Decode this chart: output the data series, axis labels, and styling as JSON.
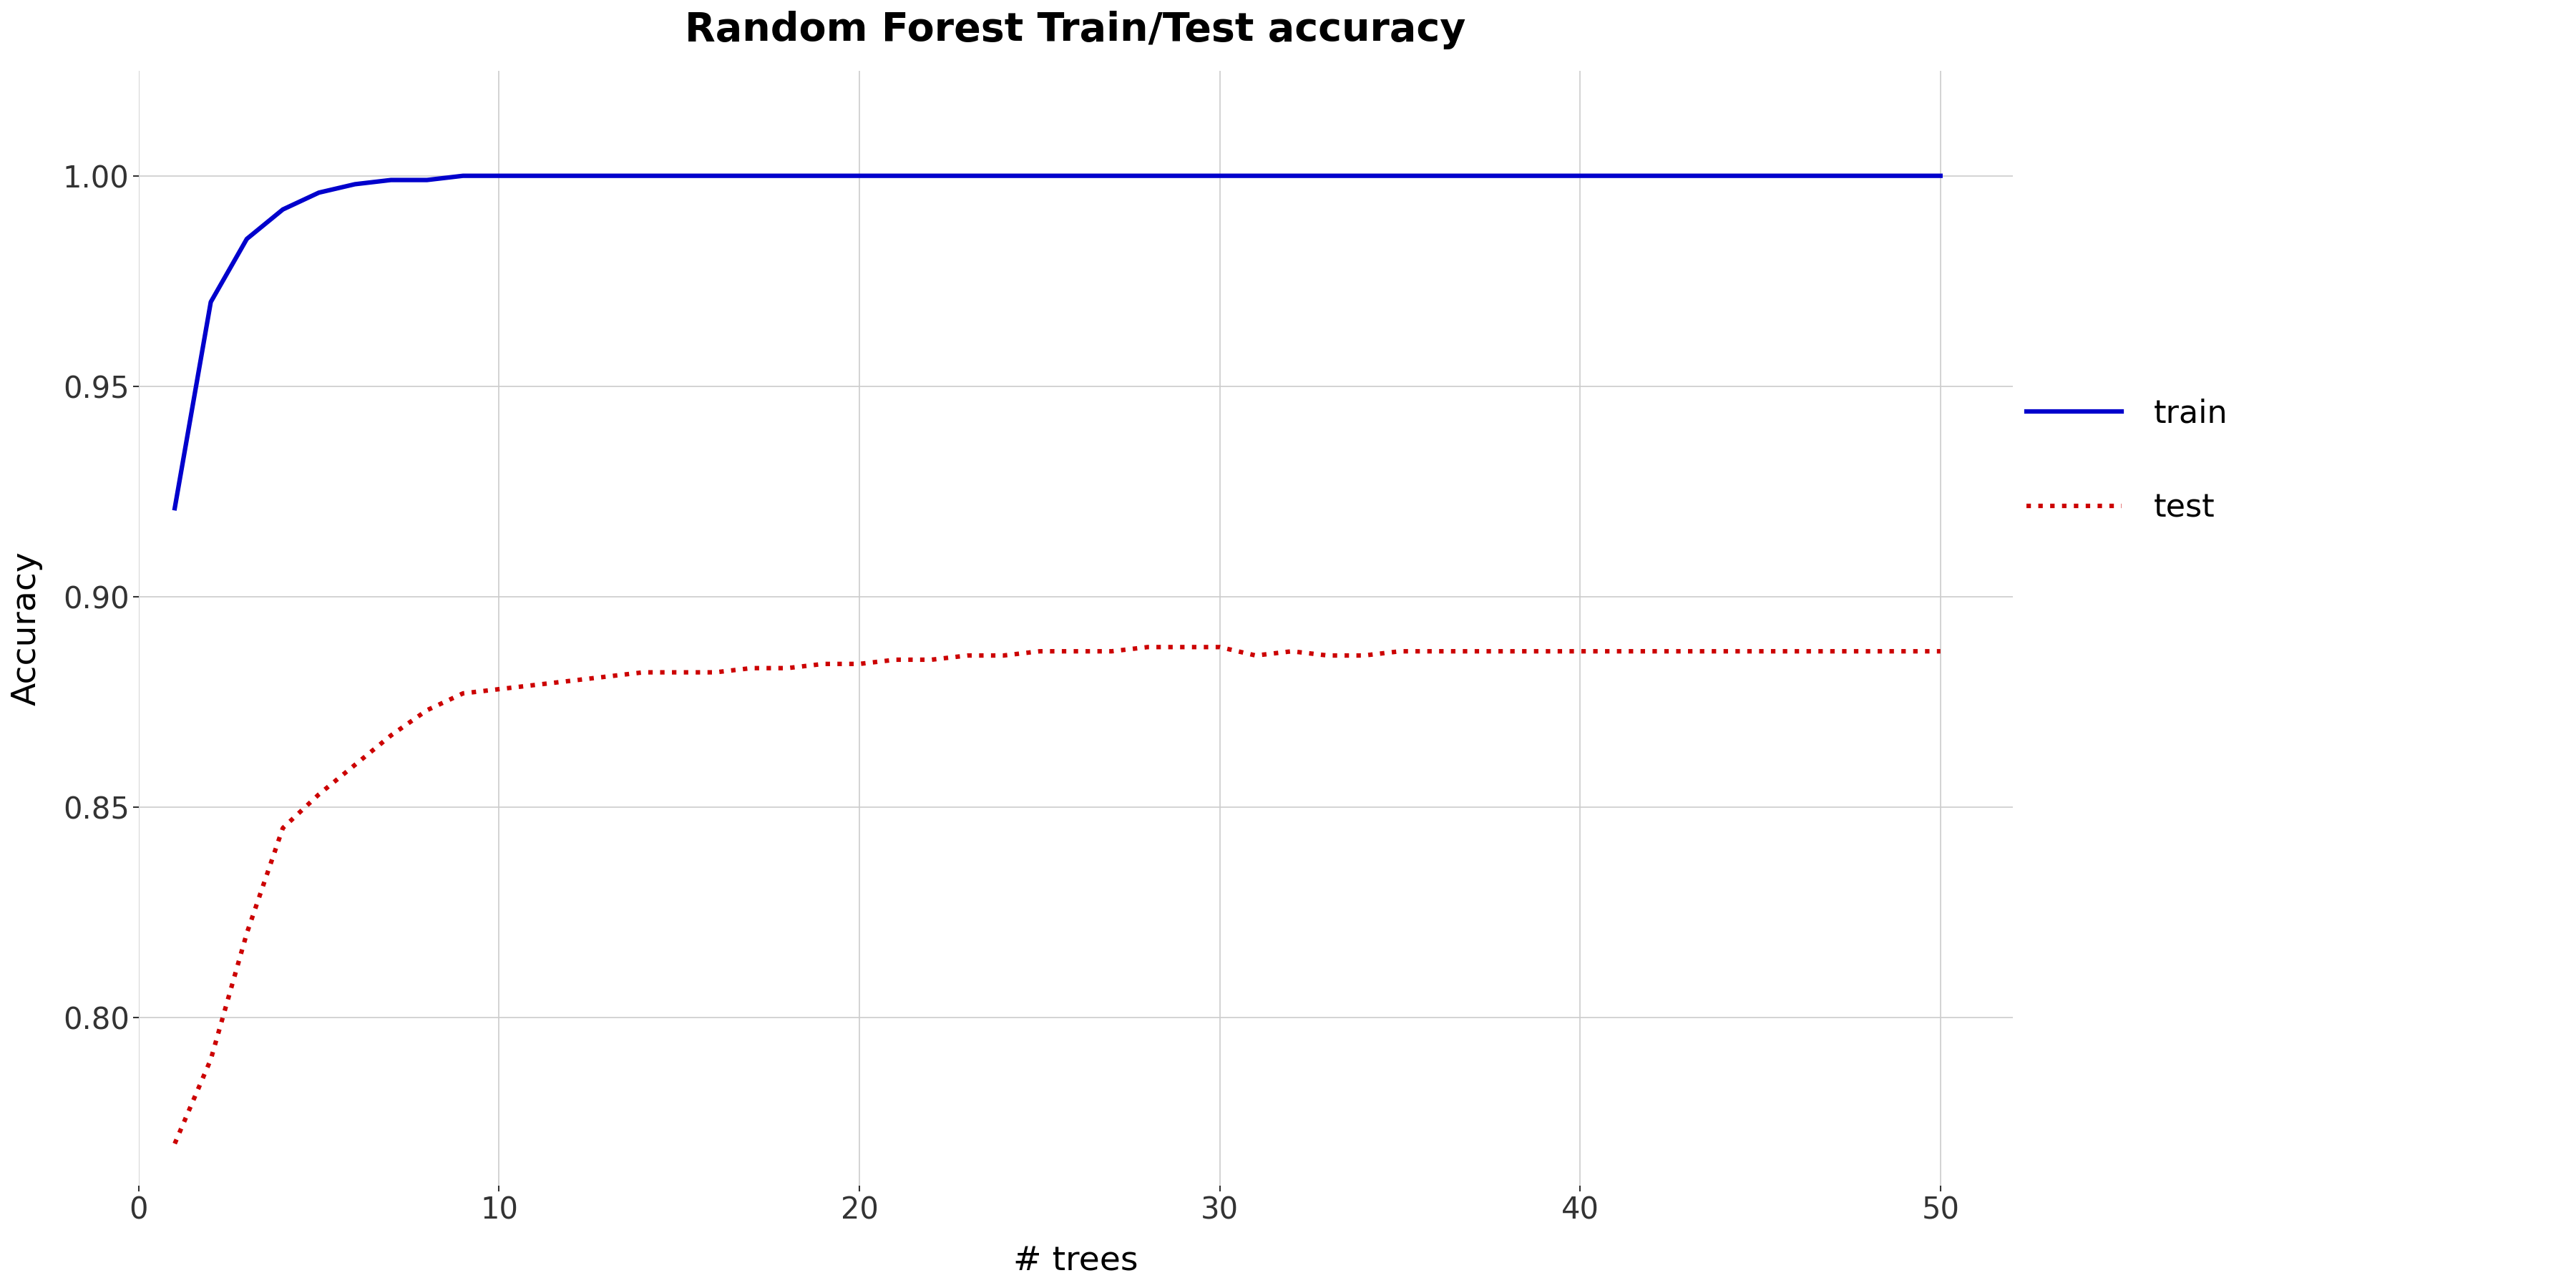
{
  "title": "Random Forest Train/Test accuracy",
  "xlabel": "# trees",
  "ylabel": "Accuracy",
  "title_fontsize": 40,
  "label_fontsize": 34,
  "tick_fontsize": 30,
  "legend_fontsize": 32,
  "background_color": "#ffffff",
  "grid_color": "#cccccc",
  "train_color": "#0000cc",
  "test_color": "#cc0000",
  "xlim": [
    0,
    52
  ],
  "ylim": [
    0.76,
    1.025
  ],
  "xticks": [
    0,
    10,
    20,
    30,
    40,
    50
  ],
  "yticks": [
    0.8,
    0.85,
    0.9,
    0.95,
    1.0
  ],
  "train_x": [
    1,
    2,
    3,
    4,
    5,
    6,
    7,
    8,
    9,
    10,
    11,
    12,
    13,
    14,
    15,
    16,
    17,
    18,
    19,
    20,
    21,
    22,
    23,
    24,
    25,
    26,
    27,
    28,
    29,
    30,
    31,
    32,
    33,
    34,
    35,
    36,
    37,
    38,
    39,
    40,
    41,
    42,
    43,
    44,
    45,
    46,
    47,
    48,
    49,
    50
  ],
  "train_y": [
    0.921,
    0.97,
    0.985,
    0.992,
    0.996,
    0.998,
    0.999,
    0.999,
    1.0,
    1.0,
    1.0,
    1.0,
    1.0,
    1.0,
    1.0,
    1.0,
    1.0,
    1.0,
    1.0,
    1.0,
    1.0,
    1.0,
    1.0,
    1.0,
    1.0,
    1.0,
    1.0,
    1.0,
    1.0,
    1.0,
    1.0,
    1.0,
    1.0,
    1.0,
    1.0,
    1.0,
    1.0,
    1.0,
    1.0,
    1.0,
    1.0,
    1.0,
    1.0,
    1.0,
    1.0,
    1.0,
    1.0,
    1.0,
    1.0,
    1.0
  ],
  "test_x": [
    1,
    2,
    3,
    4,
    5,
    6,
    7,
    8,
    9,
    10,
    11,
    12,
    13,
    14,
    15,
    16,
    17,
    18,
    19,
    20,
    21,
    22,
    23,
    24,
    25,
    26,
    27,
    28,
    29,
    30,
    31,
    32,
    33,
    34,
    35,
    36,
    37,
    38,
    39,
    40,
    41,
    42,
    43,
    44,
    45,
    46,
    47,
    48,
    49,
    50
  ],
  "test_y": [
    0.77,
    0.79,
    0.82,
    0.845,
    0.853,
    0.86,
    0.867,
    0.873,
    0.877,
    0.878,
    0.879,
    0.88,
    0.881,
    0.882,
    0.882,
    0.882,
    0.883,
    0.883,
    0.884,
    0.884,
    0.885,
    0.885,
    0.886,
    0.886,
    0.887,
    0.887,
    0.887,
    0.888,
    0.888,
    0.888,
    0.886,
    0.887,
    0.886,
    0.886,
    0.887,
    0.887,
    0.887,
    0.887,
    0.887,
    0.887,
    0.887,
    0.887,
    0.887,
    0.887,
    0.887,
    0.887,
    0.887,
    0.887,
    0.887,
    0.887
  ]
}
